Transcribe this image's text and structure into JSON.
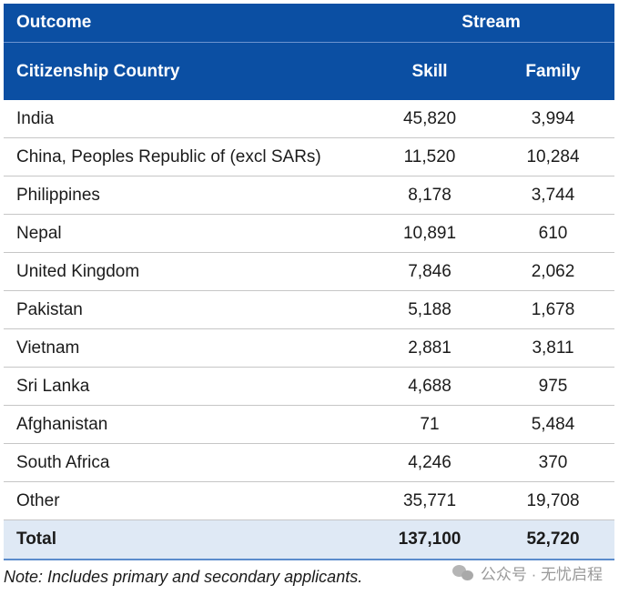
{
  "table": {
    "header": {
      "outcome_label": "Outcome",
      "stream_label": "Stream",
      "country_label": "Citizenship Country",
      "skill_label": "Skill",
      "family_label": "Family"
    },
    "rows": [
      {
        "country": "India",
        "skill": "45,820",
        "family": "3,994"
      },
      {
        "country": "China, Peoples Republic of (excl SARs)",
        "skill": "11,520",
        "family": "10,284"
      },
      {
        "country": "Philippines",
        "skill": "8,178",
        "family": "3,744"
      },
      {
        "country": "Nepal",
        "skill": "10,891",
        "family": "610"
      },
      {
        "country": "United Kingdom",
        "skill": "7,846",
        "family": "2,062"
      },
      {
        "country": "Pakistan",
        "skill": "5,188",
        "family": "1,678"
      },
      {
        "country": "Vietnam",
        "skill": "2,881",
        "family": "3,811"
      },
      {
        "country": "Sri Lanka",
        "skill": "4,688",
        "family": "975"
      },
      {
        "country": "Afghanistan",
        "skill": "71",
        "family": "5,484"
      },
      {
        "country": "South Africa",
        "skill": "4,246",
        "family": "370"
      },
      {
        "country": "Other",
        "skill": "35,771",
        "family": "19,708"
      }
    ],
    "total": {
      "label": "Total",
      "skill": "137,100",
      "family": "52,720"
    }
  },
  "note": "Note: Includes primary and secondary applicants.",
  "watermark": {
    "icon": "wechat-icon",
    "text": "公众号 · 无忧启程"
  },
  "colors": {
    "header_bg": "#0b4fa3",
    "total_bg": "#dfe9f5"
  }
}
